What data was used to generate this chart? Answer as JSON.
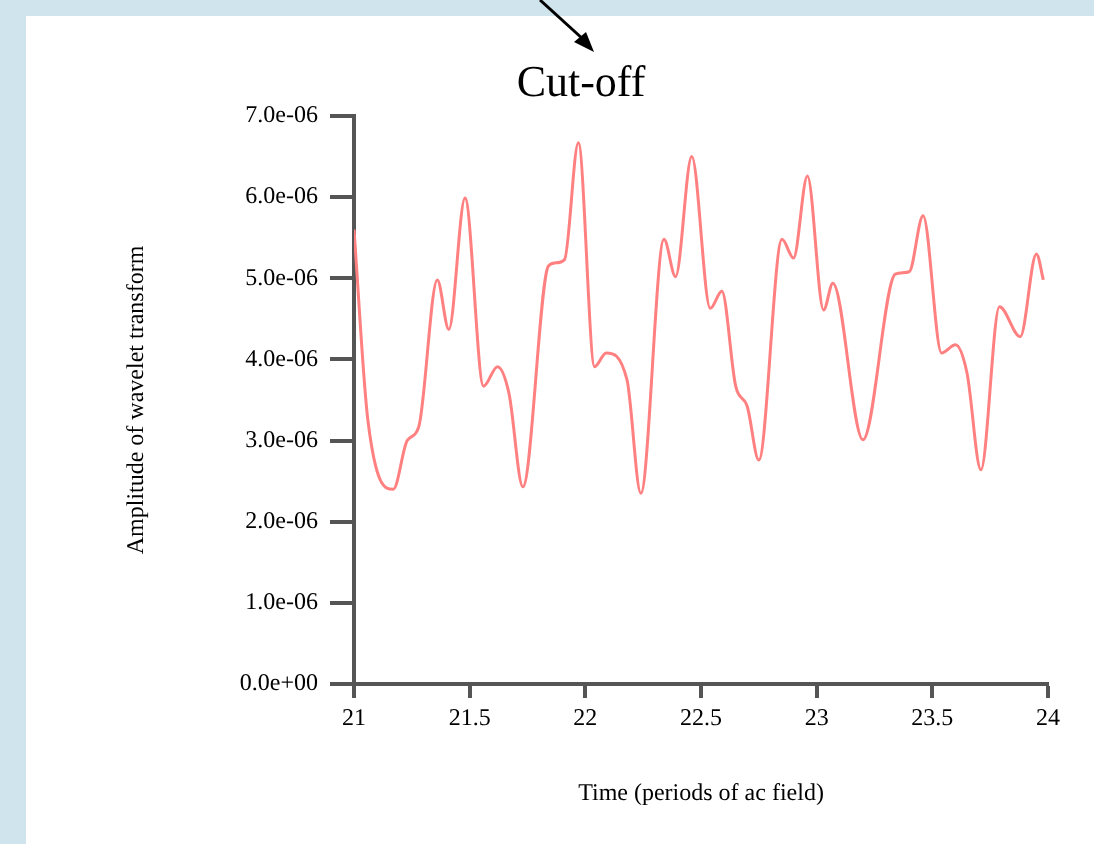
{
  "chart_data": {
    "type": "line",
    "xlabel": "Time (periods of ac field)",
    "ylabel": "Amplitude of wavelet transform",
    "annotations": [
      "Cut-off"
    ],
    "x": [
      21.0,
      21.06,
      21.17,
      21.23,
      21.28,
      21.36,
      21.41,
      21.48,
      21.56,
      21.62,
      21.67,
      21.73,
      21.84,
      21.87,
      21.91,
      21.97,
      22.04,
      22.09,
      22.18,
      22.24,
      22.34,
      22.39,
      22.46,
      22.54,
      22.59,
      22.65,
      22.7,
      22.75,
      22.85,
      22.9,
      22.96,
      23.03,
      23.07,
      23.2,
      23.34,
      23.4,
      23.46,
      23.54,
      23.6,
      23.65,
      23.71,
      23.79,
      23.88,
      23.95,
      23.98
    ],
    "series": [
      {
        "color": "#ff8080",
        "values": [
          5.6e-06,
          3.25e-06,
          2.4e-06,
          3e-06,
          3.17e-06,
          4.98e-06,
          4.37e-06,
          5.99e-06,
          3.67e-06,
          3.91e-06,
          3.58e-06,
          2.43e-06,
          5.15e-06,
          5.19e-06,
          5.23e-06,
          6.67e-06,
          3.91e-06,
          4.08e-06,
          3.75e-06,
          2.35e-06,
          5.48e-06,
          5.02e-06,
          6.5e-06,
          4.63e-06,
          4.84e-06,
          3.67e-06,
          3.42e-06,
          2.76e-06,
          5.48e-06,
          5.25e-06,
          6.26e-06,
          4.61e-06,
          4.94e-06,
          3.01e-06,
          5.05e-06,
          5.08e-06,
          5.77e-06,
          4.08e-06,
          4.18e-06,
          3.83e-06,
          2.64e-06,
          4.65e-06,
          4.28e-06,
          5.3e-06,
          4.98e-06
        ]
      }
    ],
    "xlim": [
      21,
      24
    ],
    "xticks": [
      21,
      21.5,
      22,
      22.5,
      23,
      23.5,
      24
    ],
    "ylim": [
      0,
      7e-06
    ],
    "yticks": [
      {
        "value": 0,
        "label": "0.0e+00"
      },
      {
        "value": 1e-06,
        "label": "1.0e-06"
      },
      {
        "value": 2e-06,
        "label": "2.0e-06"
      },
      {
        "value": 3e-06,
        "label": "3.0e-06"
      },
      {
        "value": 4e-06,
        "label": "4.0e-06"
      },
      {
        "value": 5e-06,
        "label": "5.0e-06"
      },
      {
        "value": 6e-06,
        "label": "6.0e-06"
      },
      {
        "value": 7e-06,
        "label": "7.0e-06"
      }
    ],
    "grid": false,
    "legend": false,
    "marker": "none",
    "line_style": "solid"
  }
}
